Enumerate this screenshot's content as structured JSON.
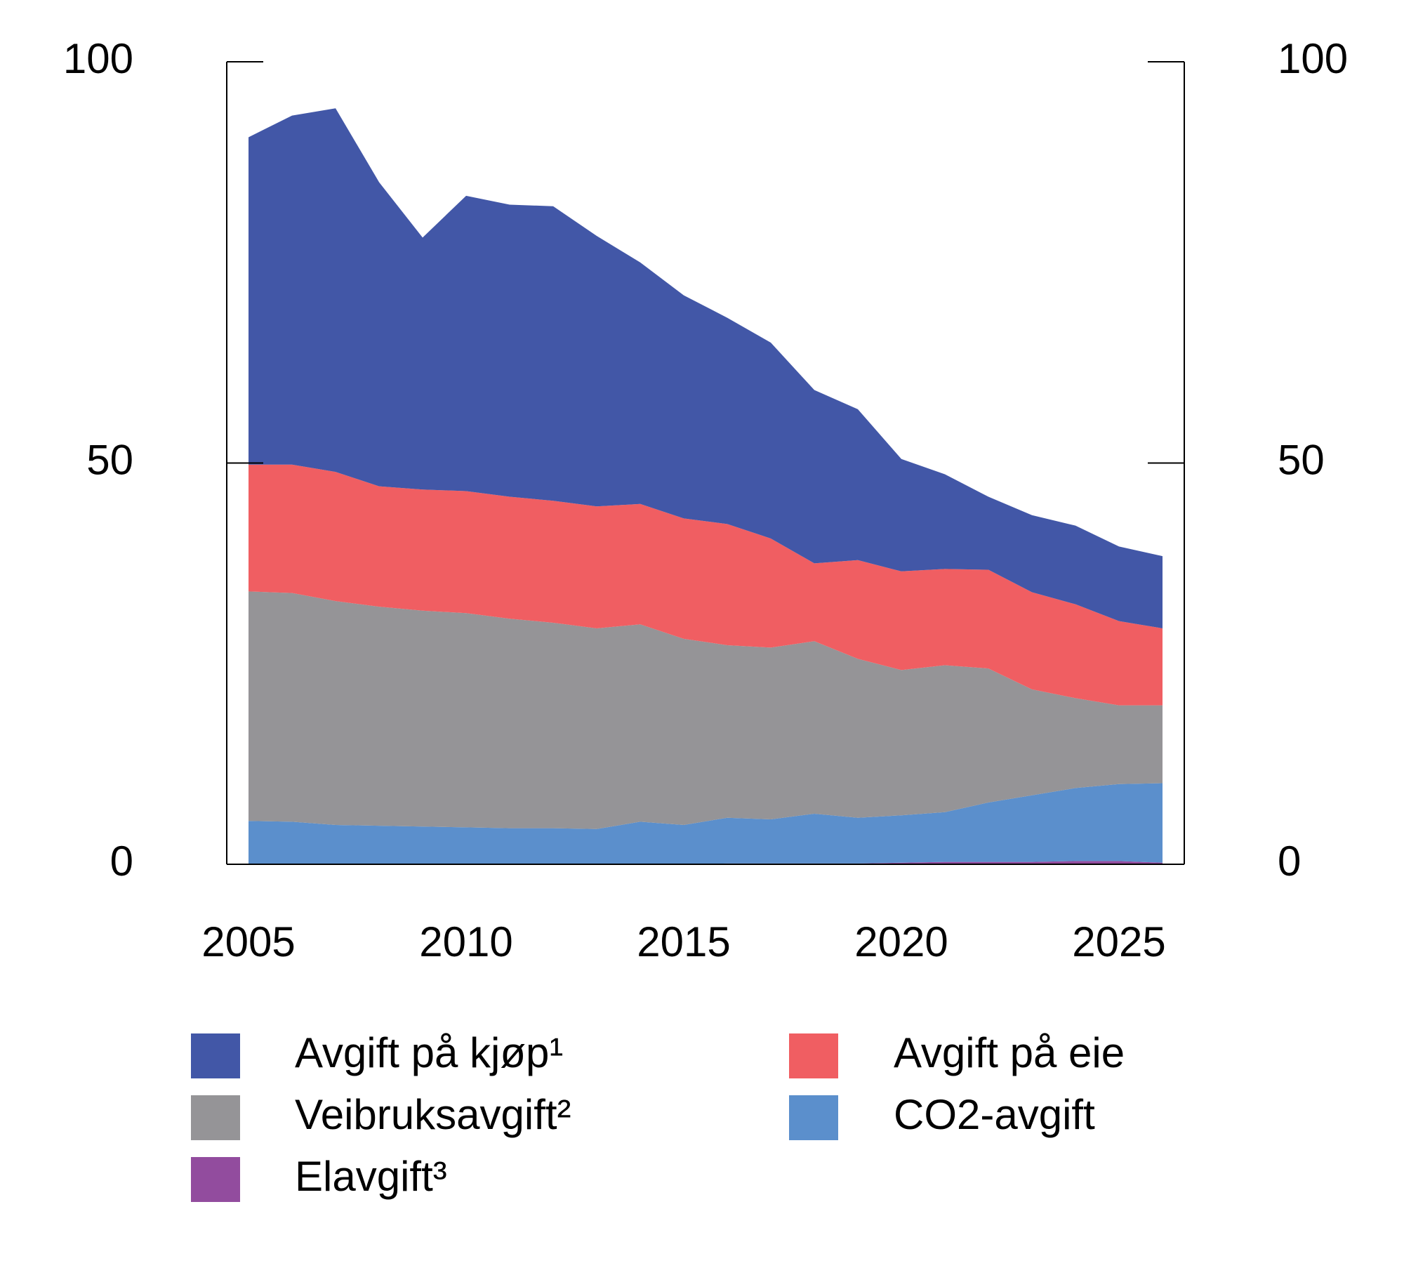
{
  "chart_data": {
    "type": "stacked_area",
    "x": [
      2005,
      2006,
      2007,
      2008,
      2009,
      2010,
      2011,
      2012,
      2013,
      2014,
      2015,
      2016,
      2017,
      2018,
      2019,
      2020,
      2021,
      2022,
      2023,
      2024,
      2025,
      2026
    ],
    "xlim": [
      2004.5,
      2026.5
    ],
    "xticks": [
      2005,
      2010,
      2015,
      2020,
      2025
    ],
    "ylim": [
      0,
      100
    ],
    "yticks": [
      0,
      50,
      100
    ],
    "y2lim": [
      0,
      100
    ],
    "y2ticks": [
      0,
      50,
      100
    ],
    "series": [
      {
        "name": "Avgift på kjøp¹",
        "color": "#4257a7",
        "values": [
          40.8,
          43.5,
          45.3,
          37.9,
          31.4,
          36.8,
          36.4,
          36.7,
          33.7,
          30.1,
          27.8,
          25.7,
          24.4,
          21.6,
          18.8,
          14.0,
          11.8,
          9.1,
          9.6,
          9.8,
          9.3,
          9.0
        ]
      },
      {
        "name": "Avgift på eie",
        "color": "#f05e62",
        "values": [
          15.8,
          16.0,
          16.1,
          15.0,
          15.1,
          15.2,
          15.2,
          15.2,
          15.2,
          15.0,
          15.0,
          15.1,
          13.6,
          9.7,
          12.3,
          12.3,
          12.0,
          12.3,
          12.1,
          11.7,
          10.5,
          9.6
        ]
      },
      {
        "name": "Veibruksavgift²",
        "color": "#959497",
        "values": [
          28.6,
          28.5,
          27.9,
          27.3,
          26.9,
          26.7,
          26.1,
          25.6,
          25.0,
          24.6,
          23.2,
          21.5,
          21.4,
          21.5,
          19.8,
          18.1,
          18.3,
          16.7,
          13.2,
          11.2,
          9.8,
          9.7
        ]
      },
      {
        "name": "CO2-avgift",
        "color": "#5b8fcc",
        "values": [
          5.4,
          5.3,
          4.9,
          4.8,
          4.7,
          4.6,
          4.5,
          4.5,
          4.4,
          5.3,
          4.9,
          5.7,
          5.5,
          6.2,
          5.7,
          5.9,
          6.2,
          7.4,
          8.3,
          9.1,
          9.6,
          9.9
        ]
      },
      {
        "name": "Elavgift³",
        "color": "#924c9e",
        "values": [
          0,
          0,
          0,
          0,
          0,
          0,
          0,
          0,
          0,
          0,
          0,
          0.1,
          0.1,
          0.1,
          0.1,
          0.2,
          0.3,
          0.3,
          0.3,
          0.4,
          0.4,
          0.2
        ]
      }
    ]
  }
}
